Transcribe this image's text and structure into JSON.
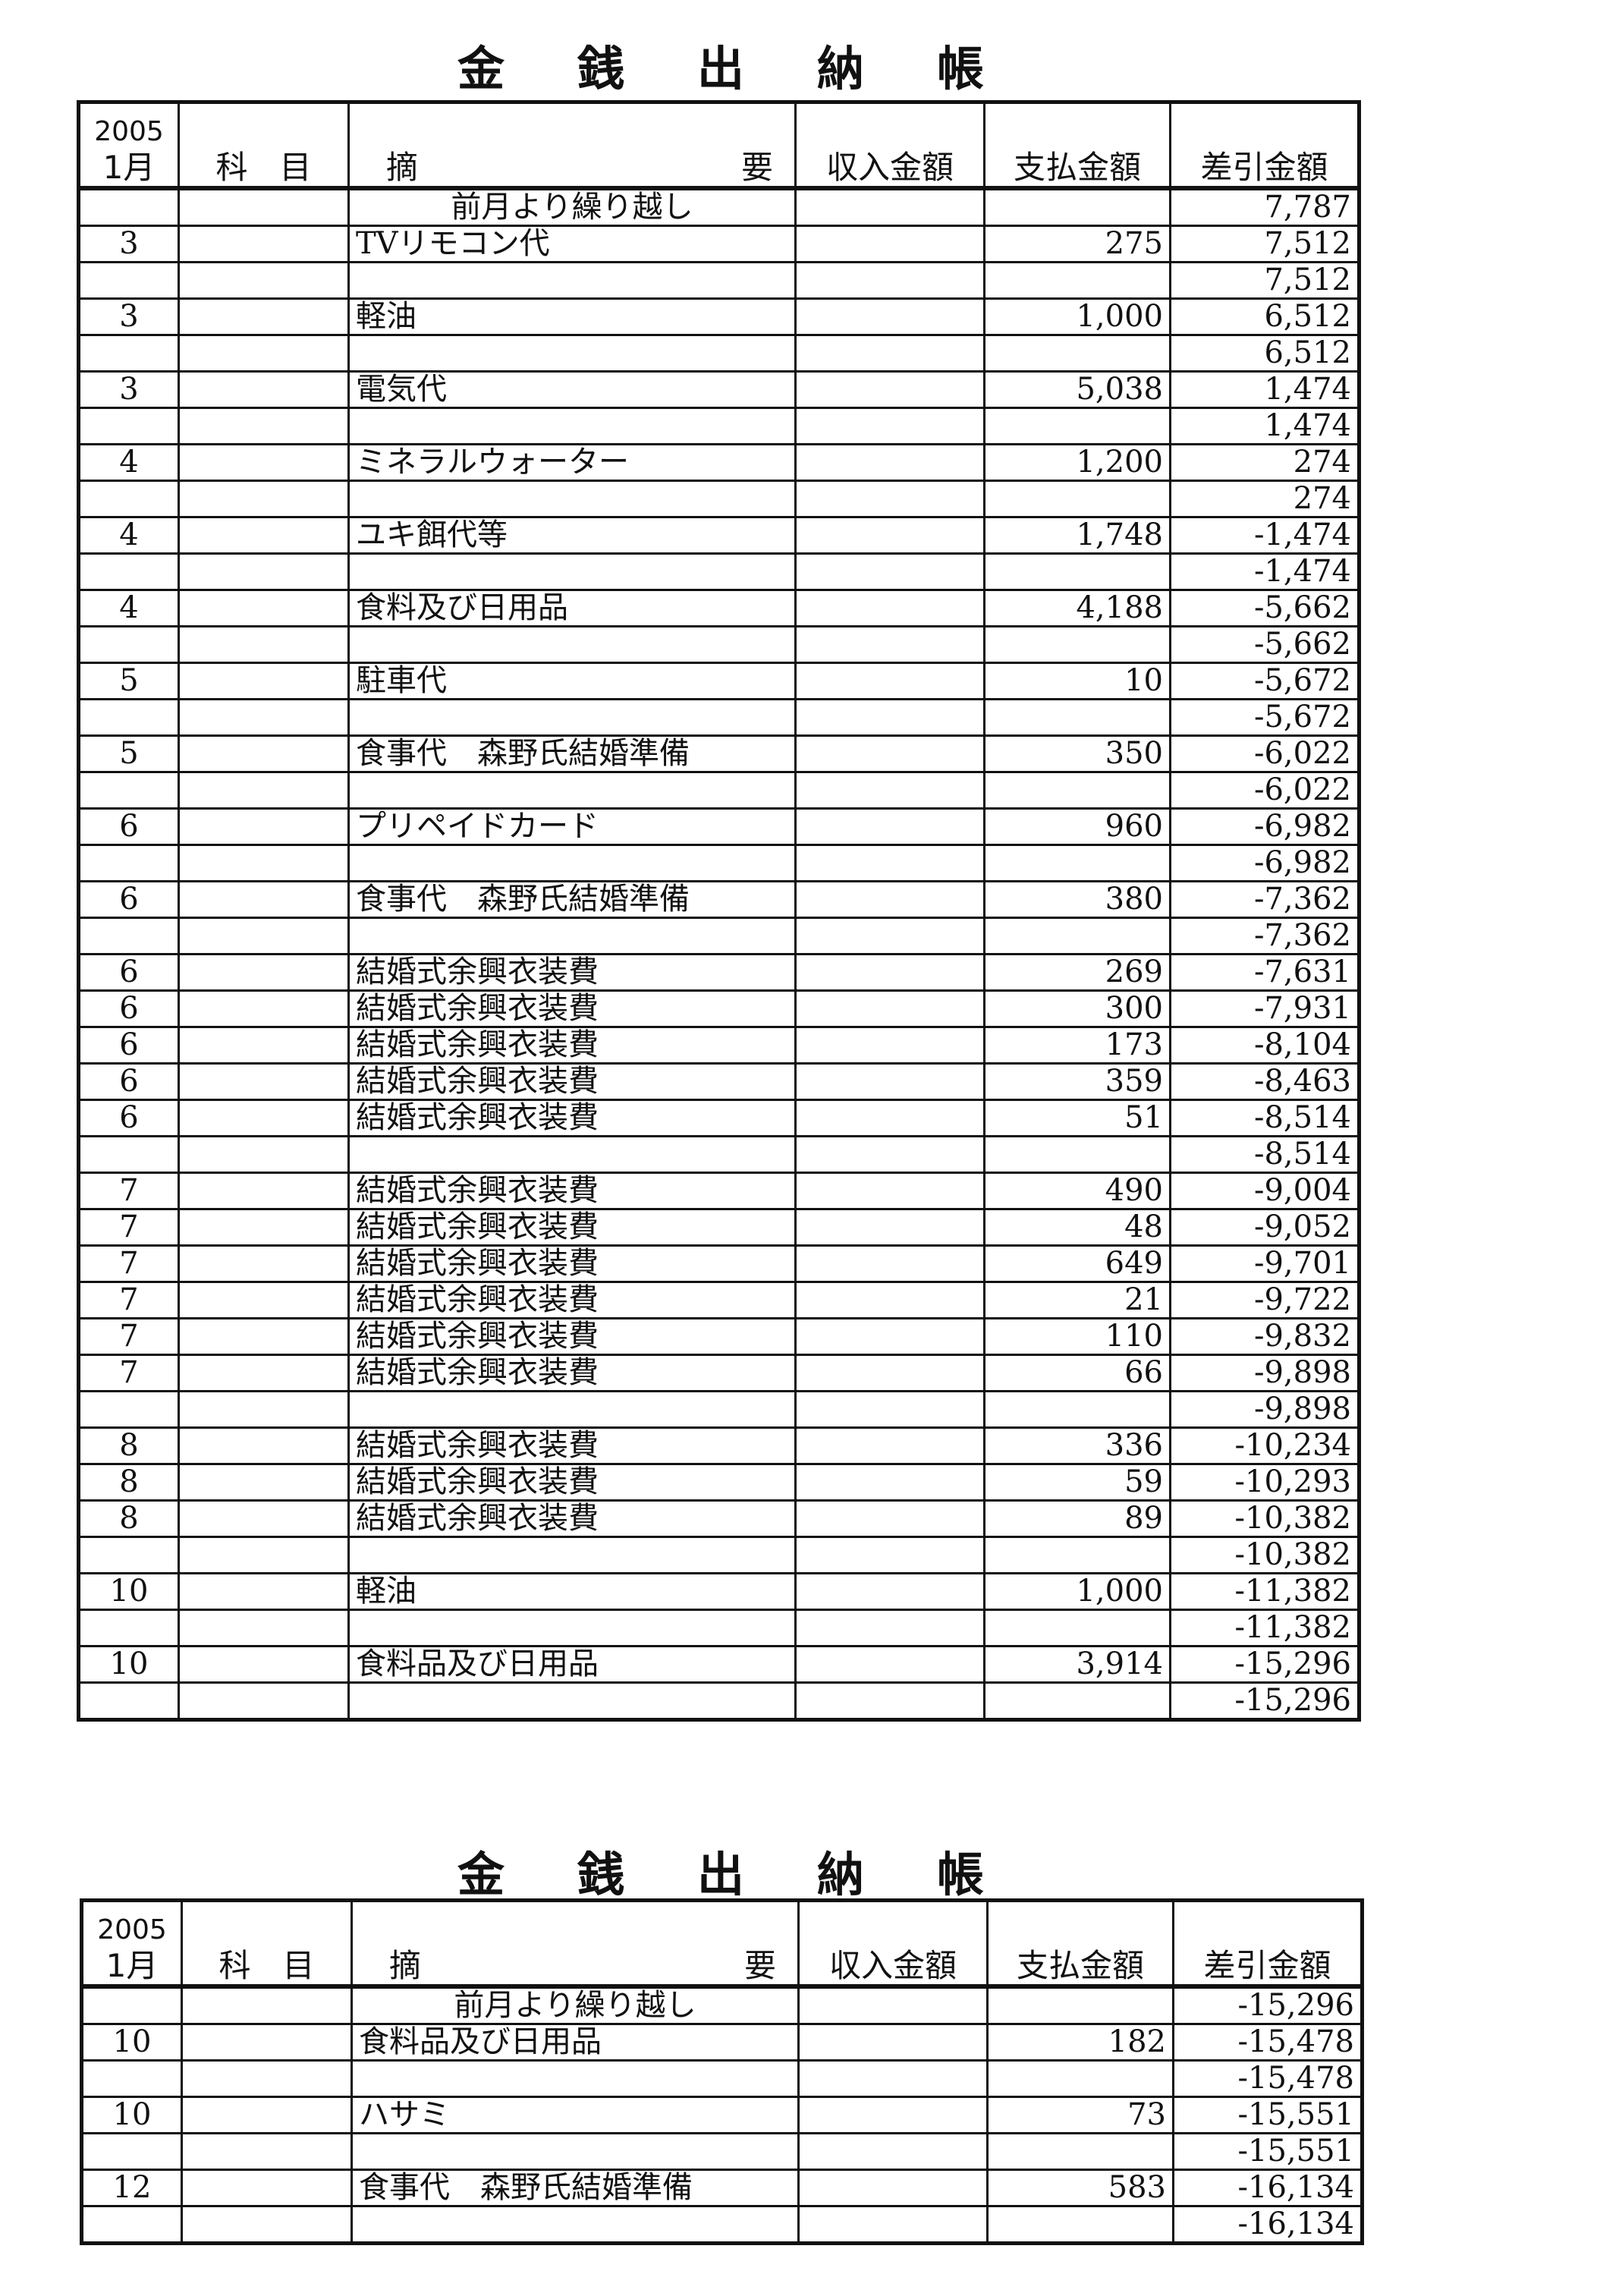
{
  "titles": [
    {
      "chars": [
        "金",
        "銭",
        "出",
        "納",
        "帳"
      ]
    },
    {
      "chars": [
        "金",
        "銭",
        "出",
        "納",
        "帳"
      ]
    }
  ],
  "header": {
    "year": "2005",
    "month": "1月",
    "subject": "科　目",
    "desc_left": "摘",
    "desc_right": "要",
    "income": "収入金額",
    "payment": "支払金額",
    "balance": "差引金額"
  },
  "tables": [
    {
      "rows": [
        {
          "day": "",
          "desc": "前月より繰り越し",
          "carry": true,
          "income": "",
          "payment": "",
          "balance": "7,787"
        },
        {
          "day": "3",
          "desc": "TVリモコン代",
          "income": "",
          "payment": "275",
          "balance": "7,512"
        },
        {
          "day": "",
          "desc": "",
          "income": "",
          "payment": "",
          "balance": "7,512"
        },
        {
          "day": "3",
          "desc": "軽油",
          "income": "",
          "payment": "1,000",
          "balance": "6,512"
        },
        {
          "day": "",
          "desc": "",
          "income": "",
          "payment": "",
          "balance": "6,512"
        },
        {
          "day": "3",
          "desc": "電気代",
          "income": "",
          "payment": "5,038",
          "balance": "1,474"
        },
        {
          "day": "",
          "desc": "",
          "income": "",
          "payment": "",
          "balance": "1,474"
        },
        {
          "day": "4",
          "desc": "ミネラルウォーター",
          "income": "",
          "payment": "1,200",
          "balance": "274"
        },
        {
          "day": "",
          "desc": "",
          "income": "",
          "payment": "",
          "balance": "274"
        },
        {
          "day": "4",
          "desc": "ユキ餌代等",
          "income": "",
          "payment": "1,748",
          "balance": "-1,474"
        },
        {
          "day": "",
          "desc": "",
          "income": "",
          "payment": "",
          "balance": "-1,474"
        },
        {
          "day": "4",
          "desc": "食料及び日用品",
          "income": "",
          "payment": "4,188",
          "balance": "-5,662"
        },
        {
          "day": "",
          "desc": "",
          "income": "",
          "payment": "",
          "balance": "-5,662"
        },
        {
          "day": "5",
          "desc": "駐車代",
          "income": "",
          "payment": "10",
          "balance": "-5,672"
        },
        {
          "day": "",
          "desc": "",
          "income": "",
          "payment": "",
          "balance": "-5,672"
        },
        {
          "day": "5",
          "desc": "食事代　森野氏結婚準備",
          "income": "",
          "payment": "350",
          "balance": "-6,022"
        },
        {
          "day": "",
          "desc": "",
          "income": "",
          "payment": "",
          "balance": "-6,022"
        },
        {
          "day": "6",
          "desc": "プリペイドカード",
          "income": "",
          "payment": "960",
          "balance": "-6,982"
        },
        {
          "day": "",
          "desc": "",
          "income": "",
          "payment": "",
          "balance": "-6,982"
        },
        {
          "day": "6",
          "desc": "食事代　森野氏結婚準備",
          "income": "",
          "payment": "380",
          "balance": "-7,362"
        },
        {
          "day": "",
          "desc": "",
          "income": "",
          "payment": "",
          "balance": "-7,362"
        },
        {
          "day": "6",
          "desc": "結婚式余興衣装費",
          "income": "",
          "payment": "269",
          "balance": "-7,631"
        },
        {
          "day": "6",
          "desc": "結婚式余興衣装費",
          "income": "",
          "payment": "300",
          "balance": "-7,931"
        },
        {
          "day": "6",
          "desc": "結婚式余興衣装費",
          "income": "",
          "payment": "173",
          "balance": "-8,104"
        },
        {
          "day": "6",
          "desc": "結婚式余興衣装費",
          "income": "",
          "payment": "359",
          "balance": "-8,463"
        },
        {
          "day": "6",
          "desc": "結婚式余興衣装費",
          "income": "",
          "payment": "51",
          "balance": "-8,514"
        },
        {
          "day": "",
          "desc": "",
          "income": "",
          "payment": "",
          "balance": "-8,514"
        },
        {
          "day": "7",
          "desc": "結婚式余興衣装費",
          "income": "",
          "payment": "490",
          "balance": "-9,004"
        },
        {
          "day": "7",
          "desc": "結婚式余興衣装費",
          "income": "",
          "payment": "48",
          "balance": "-9,052"
        },
        {
          "day": "7",
          "desc": "結婚式余興衣装費",
          "income": "",
          "payment": "649",
          "balance": "-9,701"
        },
        {
          "day": "7",
          "desc": "結婚式余興衣装費",
          "income": "",
          "payment": "21",
          "balance": "-9,722"
        },
        {
          "day": "7",
          "desc": "結婚式余興衣装費",
          "income": "",
          "payment": "110",
          "balance": "-9,832"
        },
        {
          "day": "7",
          "desc": "結婚式余興衣装費",
          "income": "",
          "payment": "66",
          "balance": "-9,898"
        },
        {
          "day": "",
          "desc": "",
          "income": "",
          "payment": "",
          "balance": "-9,898"
        },
        {
          "day": "8",
          "desc": "結婚式余興衣装費",
          "income": "",
          "payment": "336",
          "balance": "-10,234"
        },
        {
          "day": "8",
          "desc": "結婚式余興衣装費",
          "income": "",
          "payment": "59",
          "balance": "-10,293"
        },
        {
          "day": "8",
          "desc": "結婚式余興衣装費",
          "income": "",
          "payment": "89",
          "balance": "-10,382"
        },
        {
          "day": "",
          "desc": "",
          "income": "",
          "payment": "",
          "balance": "-10,382"
        },
        {
          "day": "10",
          "desc": "軽油",
          "income": "",
          "payment": "1,000",
          "balance": "-11,382"
        },
        {
          "day": "",
          "desc": "",
          "income": "",
          "payment": "",
          "balance": "-11,382"
        },
        {
          "day": "10",
          "desc": "食料品及び日用品",
          "income": "",
          "payment": "3,914",
          "balance": "-15,296"
        },
        {
          "day": "",
          "desc": "",
          "income": "",
          "payment": "",
          "balance": "-15,296"
        }
      ]
    },
    {
      "rows": [
        {
          "day": "",
          "desc": "前月より繰り越し",
          "carry": true,
          "income": "",
          "payment": "",
          "balance": "-15,296"
        },
        {
          "day": "10",
          "desc": "食料品及び日用品",
          "income": "",
          "payment": "182",
          "balance": "-15,478"
        },
        {
          "day": "",
          "desc": "",
          "income": "",
          "payment": "",
          "balance": "-15,478"
        },
        {
          "day": "10",
          "desc": "ハサミ",
          "income": "",
          "payment": "73",
          "balance": "-15,551"
        },
        {
          "day": "",
          "desc": "",
          "income": "",
          "payment": "",
          "balance": "-15,551"
        },
        {
          "day": "12",
          "desc": "食事代　森野氏結婚準備",
          "income": "",
          "payment": "583",
          "balance": "-16,134"
        },
        {
          "day": "",
          "desc": "",
          "income": "",
          "payment": "",
          "balance": "-16,134"
        }
      ]
    }
  ]
}
